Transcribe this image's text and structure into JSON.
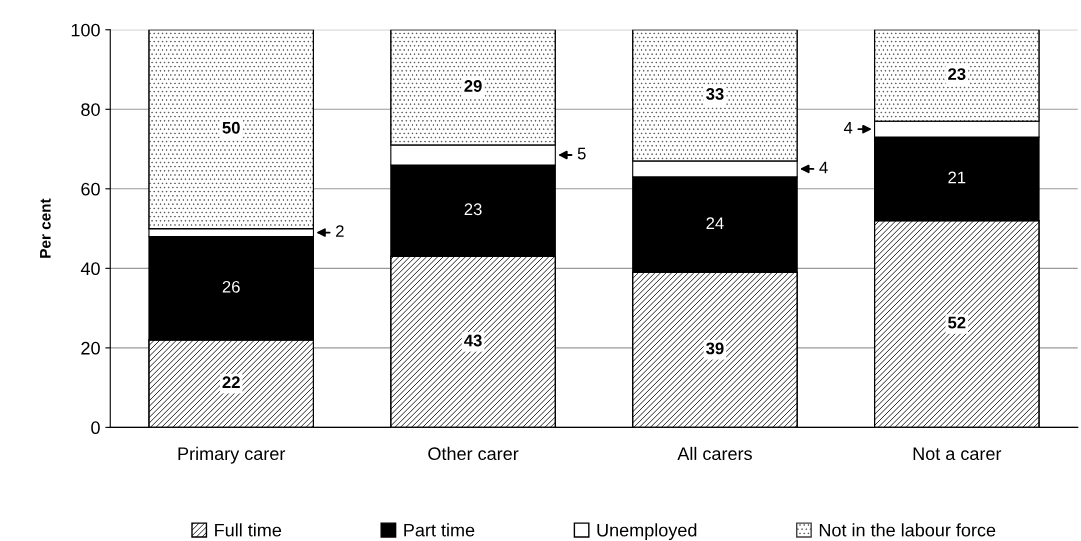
{
  "chart_data": {
    "type": "bar",
    "stacked": true,
    "ylabel": "Per cent",
    "categories": [
      "Primary carer",
      "Other carer",
      "All carers",
      "Not a carer"
    ],
    "series": [
      {
        "name": "Full time",
        "color": "#000000",
        "values": [
          22,
          43,
          39,
          52
        ]
      },
      {
        "name": "Part time",
        "color": "#000000",
        "values": [
          26,
          23,
          24,
          21
        ]
      },
      {
        "name": "Unemployed",
        "color": "#ffffff",
        "values": [
          2,
          5,
          4,
          4
        ]
      },
      {
        "name": "Not in the labour force",
        "color": "#404040",
        "values": [
          50,
          29,
          33,
          23
        ]
      }
    ],
    "ylim": [
      0,
      100
    ],
    "yticks": [
      0,
      20,
      40,
      60,
      80,
      100
    ],
    "grid": "y",
    "legend": "bottom",
    "data_labels": true
  }
}
